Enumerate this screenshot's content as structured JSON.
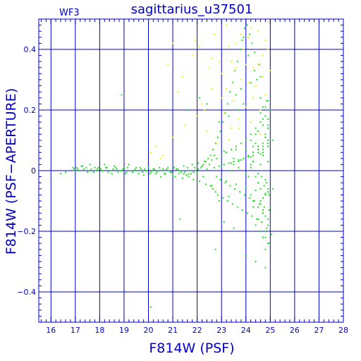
{
  "chart_data": {
    "type": "scatter",
    "title": "sagittarius_u37501",
    "panel_label": "WF3",
    "xlabel": "F814W (PSF)",
    "ylabel": "F814W (PSF−APERTURE)",
    "xlim": [
      15.5,
      28.0
    ],
    "ylim": [
      -0.5,
      0.5
    ],
    "xticks": [
      16,
      17,
      18,
      19,
      20,
      21,
      22,
      23,
      24,
      25,
      26,
      27,
      28
    ],
    "xtick_labels": [
      "16",
      "17",
      "18",
      "19",
      "20",
      "21",
      "22",
      "23",
      "24",
      "25",
      "26",
      "27",
      "28"
    ],
    "yticks": [
      -0.4,
      -0.2,
      0,
      0.2,
      0.4
    ],
    "ytick_labels": [
      "−0.4",
      "−0.2",
      "0",
      "0.2",
      "0.4"
    ],
    "grid": true,
    "colors": {
      "frame": "#0000c8",
      "green_points": "#22e022",
      "yellow_points": "#f2f20a"
    },
    "series": [
      {
        "color": "#22e022",
        "x": [
          16.4,
          16.6,
          16.9,
          17.0,
          17.1,
          17.3,
          17.5,
          17.6,
          17.8,
          17.9,
          18.1,
          18.2,
          18.3,
          18.5,
          18.6,
          18.7,
          18.9,
          19.0,
          19.1,
          19.2,
          19.4,
          19.5,
          19.6,
          19.7,
          19.8,
          19.9,
          20.0,
          20.1,
          20.2,
          20.3,
          20.4,
          20.5,
          20.6,
          20.7,
          20.8,
          20.9,
          21.0,
          21.05,
          21.1,
          21.2,
          21.25,
          21.3,
          21.4,
          21.45,
          21.5,
          21.6,
          21.65,
          21.7,
          21.8,
          21.85,
          21.9,
          22.0,
          22.05,
          22.1,
          22.2,
          22.25,
          22.3,
          22.35,
          22.4,
          22.5,
          22.55,
          22.6,
          22.65,
          22.7,
          22.75,
          22.8,
          22.85,
          22.9,
          22.95,
          23.0,
          23.05,
          23.1,
          23.15,
          23.2,
          23.25,
          23.3,
          23.35,
          23.4,
          23.45,
          23.5,
          23.55,
          23.6,
          23.65,
          23.7,
          23.75,
          23.8,
          23.85,
          23.9,
          23.95,
          24.0,
          24.05,
          24.1,
          24.15,
          24.2,
          24.25,
          24.3,
          24.35,
          24.4,
          24.45,
          24.5,
          24.55,
          24.6,
          24.65,
          24.7,
          24.75,
          24.8,
          24.85,
          24.9,
          24.95,
          25.0,
          25.05,
          25.1,
          22.4,
          22.6,
          22.8,
          23.0,
          23.2,
          23.4,
          23.6,
          23.8,
          24.0,
          24.2,
          24.4,
          24.6,
          24.8,
          23.1,
          23.3,
          23.5,
          23.7,
          23.9,
          24.1,
          24.3,
          24.5,
          24.7,
          24.9,
          24.2,
          24.4,
          24.6,
          24.8,
          24.3,
          24.5,
          24.7,
          24.9,
          24.4,
          24.6,
          24.8,
          24.5,
          24.7,
          24.9,
          24.6,
          24.8,
          24.7,
          24.9,
          24.8,
          24.9,
          23.6,
          23.8,
          24.0,
          24.2,
          24.4,
          24.6,
          24.8,
          24.0,
          24.2,
          24.4,
          24.6,
          24.8,
          24.3,
          24.5,
          24.7,
          24.9,
          24.5,
          24.7,
          24.9,
          24.6,
          24.8,
          24.7,
          24.9,
          24.8,
          22.9,
          23.1,
          23.3,
          23.5,
          23.7,
          23.9,
          24.1,
          24.3,
          24.5,
          24.7,
          24.9,
          24.0,
          24.2,
          24.4,
          24.6,
          24.8,
          24.3,
          24.5,
          24.7,
          24.9,
          24.5,
          24.7,
          24.9,
          24.6,
          24.8,
          24.7,
          24.8,
          24.85,
          24.95,
          18.9,
          22.75,
          24.1,
          24.35,
          23.9,
          24.6,
          20.1,
          21.3,
          21.6,
          22.1,
          22.9,
          23.4,
          23.7,
          24.2,
          24.5,
          24.9,
          23.5,
          22.7,
          23.2,
          23.6,
          24.3,
          24.7,
          25.0,
          25.1,
          24.95,
          24.85,
          24.75,
          24.65,
          24.55,
          24.45,
          24.35,
          24.25,
          24.15,
          24.05,
          23.95,
          23.85,
          23.75,
          23.65,
          23.55,
          23.45,
          23.35,
          23.25,
          23.15,
          23.05,
          22.95,
          22.85,
          22.75,
          22.65,
          22.55,
          22.45,
          22.35,
          22.25,
          22.15,
          22.05,
          21.95,
          21.85,
          21.75,
          21.65,
          21.55,
          21.45,
          21.35,
          21.25,
          21.15,
          21.05,
          20.95,
          20.85,
          20.75,
          20.65,
          20.55,
          20.45,
          20.35,
          20.25,
          20.15,
          20.05,
          19.95,
          19.85,
          19.75,
          19.65,
          19.55,
          19.45,
          19.35,
          19.25,
          19.15,
          19.05,
          18.95,
          18.85,
          18.75,
          18.65,
          18.55,
          18.45,
          18.35,
          18.25,
          18.15,
          18.05,
          17.95,
          17.85,
          17.75,
          17.65,
          17.55,
          17.45,
          17.35,
          17.25,
          17.15,
          17.05,
          16.95
        ],
        "y": [
          -0.01,
          -0.005,
          0.01,
          0.0,
          0.005,
          0.015,
          -0.005,
          0.02,
          0.01,
          0.005,
          0.0,
          0.02,
          0.01,
          -0.01,
          0.015,
          0.005,
          0.0,
          0.01,
          -0.005,
          0.02,
          0.0,
          0.01,
          -0.01,
          0.005,
          -0.015,
          0.0,
          0.01,
          -0.005,
          0.005,
          -0.01,
          0.0,
          -0.02,
          0.005,
          -0.01,
          0.01,
          -0.005,
          -0.015,
          0.01,
          -0.02,
          0.005,
          -0.01,
          0.0,
          -0.025,
          0.015,
          -0.005,
          0.01,
          -0.02,
          0.0,
          0.02,
          -0.03,
          0.01,
          -0.01,
          0.025,
          -0.035,
          0.015,
          -0.02,
          0.03,
          -0.045,
          0.005,
          0.02,
          -0.05,
          0.035,
          -0.06,
          0.01,
          -0.07,
          0.04,
          -0.08,
          0.015,
          -0.03,
          0.05,
          -0.09,
          0.02,
          -0.04,
          0.06,
          -0.1,
          0.025,
          -0.05,
          0.07,
          -0.11,
          0.03,
          -0.06,
          0.08,
          -0.12,
          0.035,
          -0.07,
          0.09,
          -0.13,
          0.04,
          -0.08,
          0.1,
          -0.14,
          0.045,
          -0.09,
          0.12,
          -0.15,
          0.05,
          -0.1,
          0.14,
          -0.16,
          0.06,
          -0.11,
          0.16,
          -0.17,
          0.07,
          -0.12,
          0.18,
          -0.19,
          0.08,
          -0.13,
          0.2,
          -0.21,
          0.1,
          0.22,
          -0.05,
          -0.02,
          0.015,
          -0.035,
          0.025,
          -0.045,
          0.035,
          -0.055,
          0.045,
          -0.065,
          0.055,
          -0.075,
          0.065,
          -0.085,
          0.02,
          0.03,
          0.04,
          0.05,
          0.06,
          0.07,
          0.08,
          0.09,
          0.1,
          0.12,
          -0.06,
          -0.08,
          -0.1,
          -0.12,
          -0.14,
          -0.16,
          -0.18,
          -0.2,
          0.11,
          0.13,
          0.15,
          0.17,
          0.19,
          0.21,
          -0.22,
          -0.24,
          -0.26,
          0.23,
          0.25,
          0.27,
          -0.28,
          0.29,
          -0.3,
          0.31,
          -0.32,
          -0.01,
          0.01,
          -0.02,
          0.02,
          -0.03,
          0.03,
          -0.04,
          0.06,
          -0.07,
          0.08,
          -0.09,
          0.1,
          -0.11,
          0.12,
          -0.13,
          0.14,
          -0.15,
          0.16,
          -0.17,
          0.18,
          -0.19,
          0.2,
          0.22,
          -0.02,
          0.03,
          -0.04,
          0.05,
          -0.06,
          0.07,
          -0.08,
          0.09,
          -0.1,
          0.11,
          -0.12,
          0.13,
          -0.14,
          0.15,
          -0.16,
          0.17,
          -0.18,
          0.19,
          -0.2,
          0.21,
          -0.22,
          0.23,
          -0.24,
          0.25,
          -0.26,
          0.38,
          0.33,
          0.44,
          0.24,
          -0.45,
          -0.16,
          0.2,
          0.24,
          -0.1,
          0.0,
          0.01,
          0.02,
          -0.01,
          0.03,
          0.04,
          0.05,
          0.06,
          0.07,
          0.08,
          0.09,
          -0.12,
          -0.06,
          -0.08,
          -0.04,
          -0.05,
          -0.02,
          0.35,
          0.3,
          0.39,
          0.42,
          0.45,
          0.48,
          0.47,
          0.43,
          0.4,
          0.36,
          0.33,
          0.29,
          0.26,
          0.22,
          0.19,
          0.16,
          0.13,
          0.11,
          0.09,
          0.07,
          0.05,
          0.04,
          0.03,
          0.02,
          0.01,
          0.005,
          0.0,
          -0.005,
          -0.01,
          -0.012,
          -0.015,
          -0.01,
          -0.005,
          0.0,
          0.005,
          0.01,
          -0.005,
          0.0,
          0.005,
          -0.01,
          0.0,
          0.01,
          -0.005,
          0.005,
          0.0,
          -0.01,
          0.0,
          0.005,
          -0.005,
          0.01,
          0.0,
          0.005,
          -0.005,
          0.0,
          0.01,
          -0.01,
          0.005,
          0.0,
          -0.005,
          0.01,
          0.005,
          0.0,
          -0.005,
          0.01,
          0.0,
          0.005,
          0.01,
          0.0,
          -0.005,
          0.005,
          0.0,
          0.01,
          0.005,
          0.015,
          0.0,
          0.01,
          0.005
        ]
      },
      {
        "color": "#f2f20a",
        "x": [
          20.1,
          20.3,
          20.6,
          20.8,
          21.0,
          21.2,
          21.5,
          21.8,
          22.0,
          22.2,
          22.4,
          22.6,
          22.7,
          22.8,
          23.0,
          23.1,
          23.2,
          23.3,
          23.4,
          23.5,
          23.6,
          23.7,
          23.8,
          23.9,
          24.0,
          24.1,
          24.2,
          24.3,
          24.4,
          24.5,
          24.6,
          24.7,
          24.8,
          24.9,
          25.0,
          21.4,
          21.9,
          22.3,
          22.9,
          23.3,
          23.7,
          24.1,
          24.5,
          24.9,
          22.5,
          23.2,
          23.8,
          24.3,
          24.7,
          22.1,
          23.0,
          23.6,
          24.2,
          24.6,
          21.0,
          22.6,
          23.4,
          24.0,
          24.8,
          20.5
        ],
        "y": [
          0.06,
          0.08,
          0.05,
          0.35,
          0.11,
          0.26,
          0.15,
          0.38,
          0.18,
          0.22,
          0.13,
          0.27,
          0.45,
          0.09,
          0.32,
          0.19,
          0.48,
          0.1,
          0.36,
          0.23,
          0.42,
          0.14,
          0.3,
          0.4,
          0.21,
          0.44,
          0.16,
          0.34,
          0.28,
          0.46,
          0.12,
          0.38,
          0.25,
          0.49,
          0.33,
          0.31,
          0.43,
          0.2,
          0.36,
          0.41,
          0.17,
          0.29,
          0.35,
          0.4,
          0.34,
          0.27,
          0.45,
          0.24,
          0.31,
          0.41,
          0.24,
          0.34,
          0.47,
          0.2,
          0.42,
          0.37,
          0.14,
          0.35,
          0.43,
          0.04
        ]
      }
    ]
  }
}
